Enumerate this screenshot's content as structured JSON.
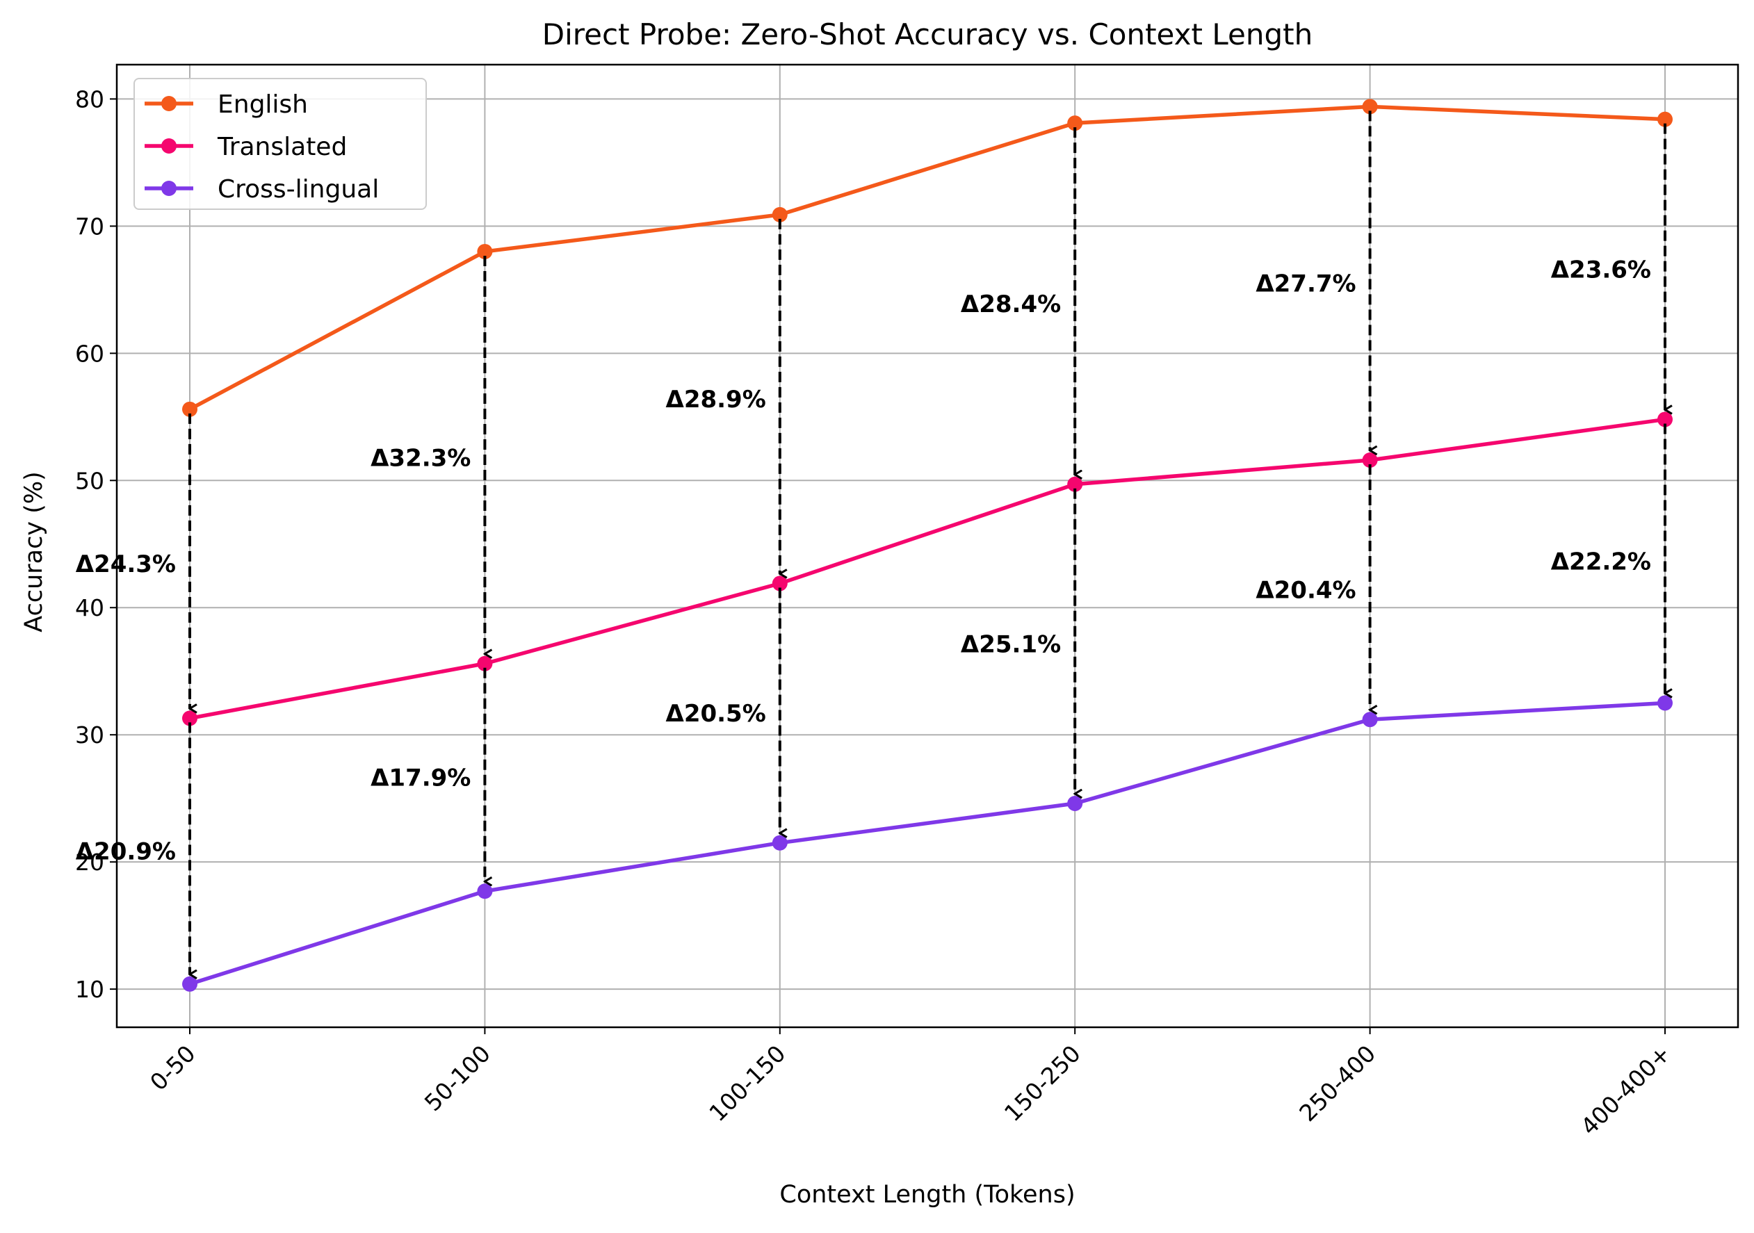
{
  "chart_data": {
    "type": "line",
    "title": "Direct Probe: Zero-Shot Accuracy vs. Context Length",
    "xlabel": "Context Length (Tokens)",
    "ylabel": "Accuracy (%)",
    "categories": [
      "0-50",
      "50-100",
      "100-150",
      "150-250",
      "250-400",
      "400-400+"
    ],
    "ylim": [
      7,
      82.7
    ],
    "yticks": [
      10,
      20,
      30,
      40,
      50,
      60,
      70,
      80
    ],
    "grid": true,
    "legend_position": "top-left",
    "series": [
      {
        "name": "English",
        "color": "#f4591a",
        "values": [
          55.6,
          68.0,
          70.9,
          78.1,
          79.4,
          78.4
        ]
      },
      {
        "name": "Translated",
        "color": "#f5066e",
        "values": [
          31.3,
          35.6,
          41.9,
          49.7,
          51.6,
          54.8
        ]
      },
      {
        "name": "Cross-lingual",
        "color": "#7f38e8",
        "values": [
          10.4,
          17.7,
          21.5,
          24.6,
          31.2,
          32.5
        ]
      }
    ],
    "annotations": [
      {
        "category": "0-50",
        "from_series": "English",
        "to_series": "Translated",
        "label": "Δ24.3%"
      },
      {
        "category": "0-50",
        "from_series": "Translated",
        "to_series": "Cross-lingual",
        "label": "Δ20.9%"
      },
      {
        "category": "50-100",
        "from_series": "English",
        "to_series": "Translated",
        "label": "Δ32.3%"
      },
      {
        "category": "50-100",
        "from_series": "Translated",
        "to_series": "Cross-lingual",
        "label": "Δ17.9%"
      },
      {
        "category": "100-150",
        "from_series": "English",
        "to_series": "Translated",
        "label": "Δ28.9%"
      },
      {
        "category": "100-150",
        "from_series": "Translated",
        "to_series": "Cross-lingual",
        "label": "Δ20.5%"
      },
      {
        "category": "150-250",
        "from_series": "English",
        "to_series": "Translated",
        "label": "Δ28.4%"
      },
      {
        "category": "150-250",
        "from_series": "Translated",
        "to_series": "Cross-lingual",
        "label": "Δ25.1%"
      },
      {
        "category": "250-400",
        "from_series": "English",
        "to_series": "Translated",
        "label": "Δ27.7%"
      },
      {
        "category": "250-400",
        "from_series": "Translated",
        "to_series": "Cross-lingual",
        "label": "Δ20.4%"
      },
      {
        "category": "400-400+",
        "from_series": "English",
        "to_series": "Translated",
        "label": "Δ23.6%"
      },
      {
        "category": "400-400+",
        "from_series": "Translated",
        "to_series": "Cross-lingual",
        "label": "Δ22.2%"
      }
    ]
  }
}
